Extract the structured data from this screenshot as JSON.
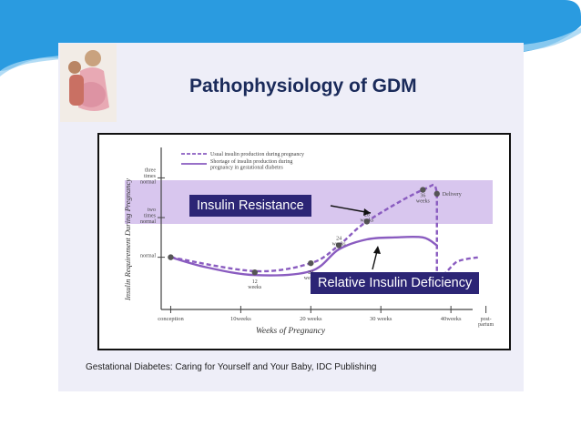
{
  "slide": {
    "title": "Pathophysiology of GDM",
    "caption": "Gestational Diabetes: Caring for Yourself and Your Baby, IDC Publishing"
  },
  "colors": {
    "banner": "#2a9be0",
    "slide_bg": "#eeeef8",
    "band": "#d8c6ee",
    "curve": "#8a5cc0",
    "label_bg": "#2c2575"
  },
  "icons": {
    "photo": "pregnant-woman-photo"
  },
  "chart_data": {
    "type": "line",
    "xlabel": "Weeks of Pregnancy",
    "ylabel": "Insulin Requirement During Pregnancy",
    "categories": [
      "conception",
      "10weeks",
      "20 weeks",
      "30 weeks",
      "40weeks",
      "post-partum"
    ],
    "y_ticks": [
      "three times normal",
      "two times normal",
      "normal"
    ],
    "legend": {
      "position": "top",
      "entries": [
        {
          "label": "Usual insulin production during pregnancy",
          "style": "dashed"
        },
        {
          "label": "Shortage of insulin production during pregnancy in gestational diabetes",
          "style": "solid"
        }
      ]
    },
    "point_labels": [
      "12 weeks",
      "20 weeks",
      "24 weeks",
      "28 weeks",
      "36 weeks",
      "Delivery"
    ],
    "series": [
      {
        "name": "Usual insulin production during pregnancy",
        "x": [
          0,
          12,
          20,
          24,
          28,
          36,
          38,
          38,
          41,
          44
        ],
        "y": [
          1.0,
          0.65,
          0.85,
          1.3,
          1.9,
          2.7,
          2.6,
          0.6,
          0.9,
          1.0
        ]
      },
      {
        "name": "Shortage of insulin production during pregnancy in gestational diabetes",
        "x": [
          0,
          5,
          12,
          20,
          24,
          28,
          32,
          36,
          38
        ],
        "y": [
          1.0,
          0.75,
          0.55,
          0.65,
          1.2,
          1.45,
          1.5,
          1.5,
          1.3
        ]
      }
    ],
    "annotations": [
      "Insulin Resistance",
      "Relative Insulin Deficiency"
    ],
    "xlim": [
      -5,
      47
    ],
    "ylim": [
      -0.5,
      3.4
    ],
    "grid": false
  }
}
